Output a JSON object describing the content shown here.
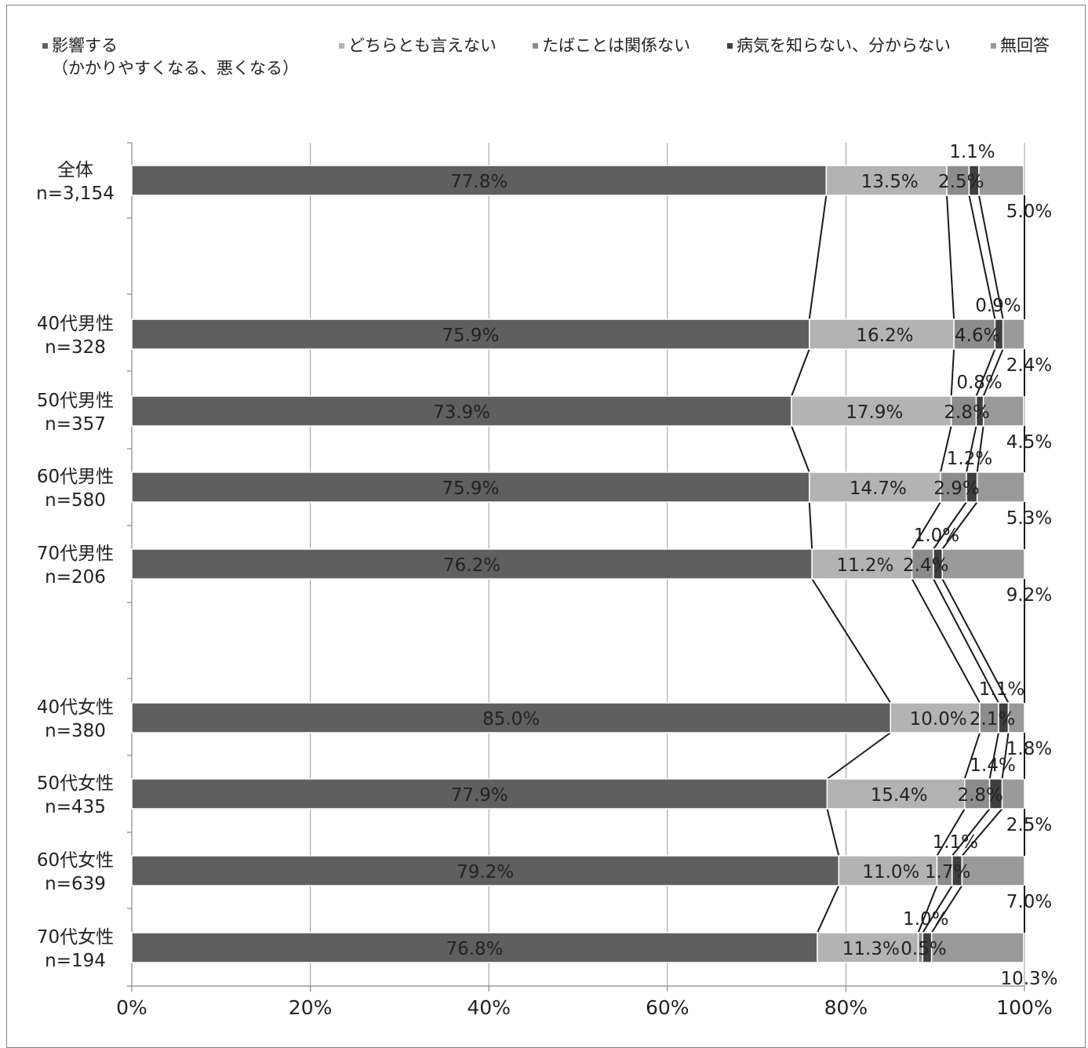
{
  "chart_data": {
    "type": "bar",
    "stacked": true,
    "orientation": "horizontal",
    "title": "",
    "xlabel": "",
    "ylabel": "",
    "xlim": [
      0,
      100
    ],
    "x_ticks": [
      "0%",
      "20%",
      "40%",
      "60%",
      "80%",
      "100%"
    ],
    "grid": true,
    "legend_position": "top",
    "legend": [
      {
        "name": "影響する",
        "sub": "（かかりやすくなる、悪くなる）",
        "color": "#5f5f5f"
      },
      {
        "name": "どちらとも言えない",
        "color": "#b3b3b3"
      },
      {
        "name": "たばことは関係ない",
        "color": "#8c8c8c"
      },
      {
        "name": "病気を知らない、分からない",
        "color": "#3f3f3f"
      },
      {
        "name": "無回答",
        "color": "#999999"
      }
    ],
    "categories": [
      {
        "name": "全体",
        "n": "n=3,154"
      },
      {
        "name": "40代男性",
        "n": "n=328"
      },
      {
        "name": "50代男性",
        "n": "n=357"
      },
      {
        "name": "60代男性",
        "n": "n=580"
      },
      {
        "name": "70代男性",
        "n": "n=206"
      },
      {
        "name": "40代女性",
        "n": "n=380"
      },
      {
        "name": "50代女性",
        "n": "n=435"
      },
      {
        "name": "60代女性",
        "n": "n=639"
      },
      {
        "name": "70代女性",
        "n": "n=194"
      }
    ],
    "values": [
      [
        77.8,
        13.5,
        2.5,
        1.1,
        5.0
      ],
      [
        75.9,
        16.2,
        4.6,
        0.9,
        2.4
      ],
      [
        73.9,
        17.9,
        2.8,
        0.8,
        4.5
      ],
      [
        75.9,
        14.7,
        2.9,
        1.2,
        5.3
      ],
      [
        76.2,
        11.2,
        2.4,
        1.0,
        9.2
      ],
      [
        85.0,
        10.0,
        2.1,
        1.1,
        1.8
      ],
      [
        77.9,
        15.4,
        2.8,
        1.4,
        2.5
      ],
      [
        79.2,
        11.0,
        1.7,
        1.1,
        7.0
      ],
      [
        76.8,
        11.3,
        0.5,
        1.0,
        10.3
      ]
    ],
    "labels": [
      [
        "77.8%",
        "13.5%",
        "2.5%",
        "1.1%",
        "5.0%"
      ],
      [
        "75.9%",
        "16.2%",
        "4.6%",
        "0.9%",
        "2.4%"
      ],
      [
        "73.9%",
        "17.9%",
        "2.8%",
        "0.8%",
        "4.5%"
      ],
      [
        "75.9%",
        "14.7%",
        "2.9%",
        "1.2%",
        "5.3%"
      ],
      [
        "76.2%",
        "11.2%",
        "2.4%",
        "1.0%",
        "9.2%"
      ],
      [
        "85.0%",
        "10.0%",
        "2.1%",
        "1.1%",
        "1.8%"
      ],
      [
        "77.9%",
        "15.4%",
        "2.8%",
        "1.4%",
        "2.5%"
      ],
      [
        "79.2%",
        "11.0%",
        "1.7%",
        "1.1%",
        "7.0%"
      ],
      [
        "76.8%",
        "11.3%",
        "0.5%",
        "1.0%",
        "10.3%"
      ]
    ]
  }
}
